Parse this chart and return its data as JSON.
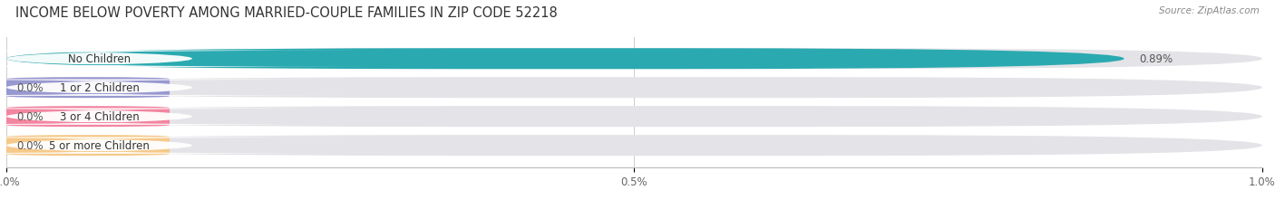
{
  "title": "INCOME BELOW POVERTY AMONG MARRIED-COUPLE FAMILIES IN ZIP CODE 52218",
  "source": "Source: ZipAtlas.com",
  "categories": [
    "No Children",
    "1 or 2 Children",
    "3 or 4 Children",
    "5 or more Children"
  ],
  "values": [
    0.89,
    0.0,
    0.0,
    0.0
  ],
  "bar_colors": [
    "#2aaab0",
    "#9898d0",
    "#f285a0",
    "#f5c98a"
  ],
  "bar_bg_color": "#e4e4e8",
  "value_labels": [
    "0.89%",
    "0.0%",
    "0.0%",
    "0.0%"
  ],
  "xlim": [
    0,
    1.0
  ],
  "xticks": [
    0.0,
    0.5,
    1.0
  ],
  "xticklabels": [
    "0.0%",
    "0.5%",
    "1.0%"
  ],
  "background_color": "#ffffff",
  "title_fontsize": 10.5,
  "label_fontsize": 8.5,
  "value_fontsize": 8.5,
  "bar_height": 0.72,
  "zero_bar_width": 0.13
}
